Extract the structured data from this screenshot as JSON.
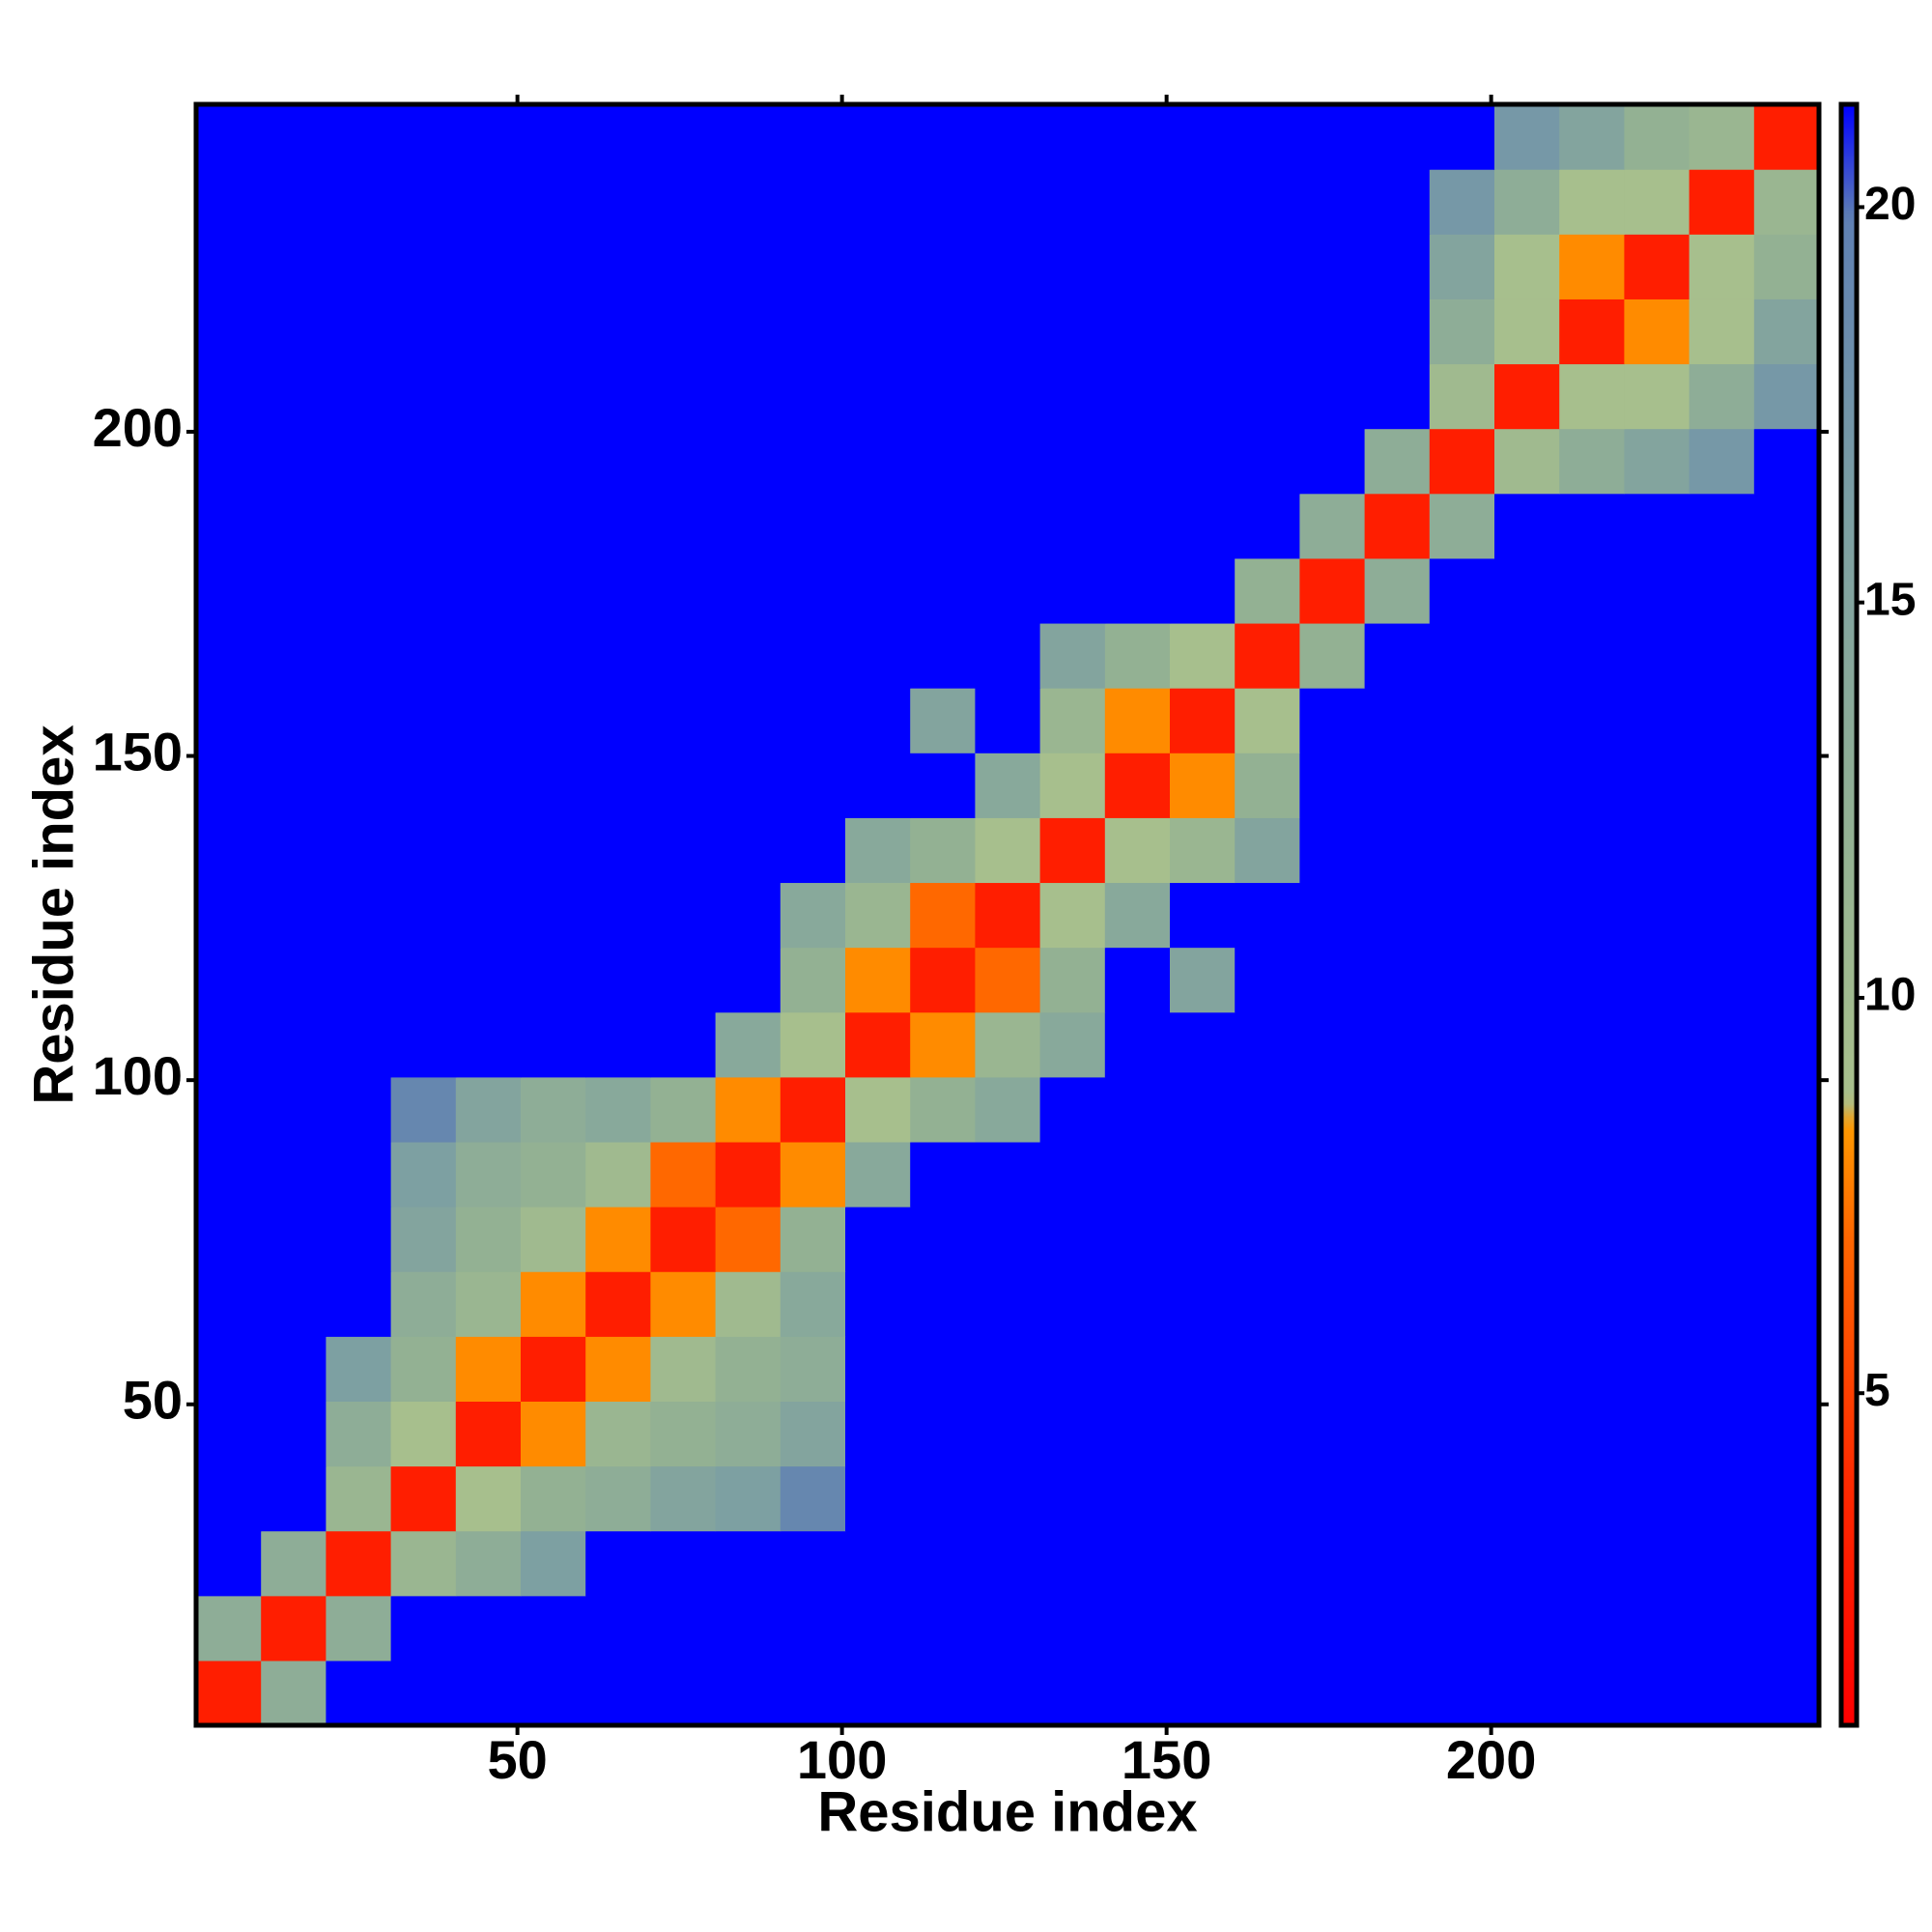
{
  "chart_data": {
    "type": "heatmap",
    "x_label": "Residue index",
    "y_label": "Residue index",
    "xlim": [
      0.5,
      250.5
    ],
    "ylim": [
      0.5,
      250.5
    ],
    "xticks": [
      50,
      100,
      150,
      200
    ],
    "yticks": [
      50,
      100,
      150,
      200
    ],
    "bins": [
      0.5,
      10.5,
      20.5,
      30.5,
      40.5,
      50.5,
      60.5,
      70.5,
      80.5,
      90.5,
      100.5,
      110.5,
      120.5,
      130.5,
      140.5,
      150.5,
      160.5,
      170.5,
      180.5,
      190.5,
      200.5,
      210.5,
      220.5,
      230.5,
      240.5,
      250.5
    ],
    "zlim": [
      0.8,
      21.3
    ],
    "colorbar_ticks": [
      5,
      10,
      15,
      20
    ],
    "colorscale": [
      "#ff0000",
      "#ff2a00",
      "#ff6600",
      "#ff9900",
      "#a9c08c",
      "#93b193",
      "#7c9fa3",
      "#5f80b3",
      "#0000ff"
    ],
    "z": [
      [
        3,
        13,
        21.3,
        21.3,
        21.3,
        21.3,
        21.3,
        21.3,
        21.3,
        21.3,
        21.3,
        21.3,
        21.3,
        21.3,
        21.3,
        21.3,
        21.3,
        21.3,
        21.3,
        21.3,
        21.3,
        21.3,
        21.3,
        21.3,
        21.3
      ],
      [
        13,
        3,
        13,
        21.3,
        21.3,
        21.3,
        21.3,
        21.3,
        21.3,
        21.3,
        21.3,
        21.3,
        21.3,
        21.3,
        21.3,
        21.3,
        21.3,
        21.3,
        21.3,
        21.3,
        21.3,
        21.3,
        21.3,
        21.3,
        21.3
      ],
      [
        21.3,
        13,
        3,
        11,
        13,
        16,
        21.3,
        21.3,
        21.3,
        21.3,
        21.3,
        21.3,
        21.3,
        21.3,
        21.3,
        21.3,
        21.3,
        21.3,
        21.3,
        21.3,
        21.3,
        21.3,
        21.3,
        21.3,
        21.3
      ],
      [
        21.3,
        21.3,
        11,
        3,
        9,
        12,
        13,
        15,
        16,
        19,
        21.3,
        21.3,
        21.3,
        21.3,
        21.3,
        21.3,
        21.3,
        21.3,
        21.3,
        21.3,
        21.3,
        21.3,
        21.3,
        21.3,
        21.3
      ],
      [
        21.3,
        21.3,
        13,
        9,
        3,
        8,
        11,
        12,
        13,
        15,
        21.3,
        21.3,
        21.3,
        21.3,
        21.3,
        21.3,
        21.3,
        21.3,
        21.3,
        21.3,
        21.3,
        21.3,
        21.3,
        21.3,
        21.3
      ],
      [
        21.3,
        21.3,
        16,
        12,
        8,
        3,
        8,
        10,
        12,
        13,
        21.3,
        21.3,
        21.3,
        21.3,
        21.3,
        21.3,
        21.3,
        21.3,
        21.3,
        21.3,
        21.3,
        21.3,
        21.3,
        21.3,
        21.3
      ],
      [
        21.3,
        21.3,
        21.3,
        13,
        11,
        8,
        3,
        8,
        10,
        14,
        21.3,
        21.3,
        21.3,
        21.3,
        21.3,
        21.3,
        21.3,
        21.3,
        21.3,
        21.3,
        21.3,
        21.3,
        21.3,
        21.3,
        21.3
      ],
      [
        21.3,
        21.3,
        21.3,
        15,
        12,
        10,
        8,
        3,
        7,
        12,
        21.3,
        21.3,
        21.3,
        21.3,
        21.3,
        21.3,
        21.3,
        21.3,
        21.3,
        21.3,
        21.3,
        21.3,
        21.3,
        21.3,
        21.3
      ],
      [
        21.3,
        21.3,
        21.3,
        16,
        13,
        12,
        10,
        7,
        3,
        8,
        14,
        21.3,
        21.3,
        21.3,
        21.3,
        21.3,
        21.3,
        21.3,
        21.3,
        21.3,
        21.3,
        21.3,
        21.3,
        21.3,
        21.3
      ],
      [
        21.3,
        21.3,
        21.3,
        19,
        15,
        13,
        14,
        12,
        8,
        3,
        9,
        12,
        14,
        21.3,
        21.3,
        21.3,
        21.3,
        21.3,
        21.3,
        21.3,
        21.3,
        21.3,
        21.3,
        21.3,
        21.3
      ],
      [
        21.3,
        21.3,
        21.3,
        21.3,
        21.3,
        21.3,
        21.3,
        21.3,
        14,
        9,
        3,
        8,
        11,
        14,
        21.3,
        21.3,
        21.3,
        21.3,
        21.3,
        21.3,
        21.3,
        21.3,
        21.3,
        21.3,
        21.3
      ],
      [
        21.3,
        21.3,
        21.3,
        21.3,
        21.3,
        21.3,
        21.3,
        21.3,
        21.3,
        12,
        8,
        3,
        7,
        12,
        21.3,
        15,
        21.3,
        21.3,
        21.3,
        21.3,
        21.3,
        21.3,
        21.3,
        21.3,
        21.3
      ],
      [
        21.3,
        21.3,
        21.3,
        21.3,
        21.3,
        21.3,
        21.3,
        21.3,
        21.3,
        14,
        11,
        7,
        3,
        9,
        14,
        21.3,
        21.3,
        21.3,
        21.3,
        21.3,
        21.3,
        21.3,
        21.3,
        21.3,
        21.3
      ],
      [
        21.3,
        21.3,
        21.3,
        21.3,
        21.3,
        21.3,
        21.3,
        21.3,
        21.3,
        21.3,
        14,
        12,
        9,
        3,
        9,
        11,
        15,
        21.3,
        21.3,
        21.3,
        21.3,
        21.3,
        21.3,
        21.3,
        21.3
      ],
      [
        21.3,
        21.3,
        21.3,
        21.3,
        21.3,
        21.3,
        21.3,
        21.3,
        21.3,
        21.3,
        21.3,
        21.3,
        14,
        9,
        3,
        8,
        12,
        21.3,
        21.3,
        21.3,
        21.3,
        21.3,
        21.3,
        21.3,
        21.3
      ],
      [
        21.3,
        21.3,
        21.3,
        21.3,
        21.3,
        21.3,
        21.3,
        21.3,
        21.3,
        21.3,
        21.3,
        15,
        21.3,
        11,
        8,
        3,
        9,
        21.3,
        21.3,
        21.3,
        21.3,
        21.3,
        21.3,
        21.3,
        21.3
      ],
      [
        21.3,
        21.3,
        21.3,
        21.3,
        21.3,
        21.3,
        21.3,
        21.3,
        21.3,
        21.3,
        21.3,
        21.3,
        21.3,
        15,
        12,
        9,
        3,
        12,
        21.3,
        21.3,
        21.3,
        21.3,
        21.3,
        21.3,
        21.3
      ],
      [
        21.3,
        21.3,
        21.3,
        21.3,
        21.3,
        21.3,
        21.3,
        21.3,
        21.3,
        21.3,
        21.3,
        21.3,
        21.3,
        21.3,
        21.3,
        21.3,
        12,
        3,
        13,
        21.3,
        21.3,
        21.3,
        21.3,
        21.3,
        21.3
      ],
      [
        21.3,
        21.3,
        21.3,
        21.3,
        21.3,
        21.3,
        21.3,
        21.3,
        21.3,
        21.3,
        21.3,
        21.3,
        21.3,
        21.3,
        21.3,
        21.3,
        21.3,
        13,
        3,
        13,
        21.3,
        21.3,
        21.3,
        21.3,
        21.3
      ],
      [
        21.3,
        21.3,
        21.3,
        21.3,
        21.3,
        21.3,
        21.3,
        21.3,
        21.3,
        21.3,
        21.3,
        21.3,
        21.3,
        21.3,
        21.3,
        21.3,
        21.3,
        21.3,
        13,
        3,
        10,
        13,
        15,
        17,
        21.3
      ],
      [
        21.3,
        21.3,
        21.3,
        21.3,
        21.3,
        21.3,
        21.3,
        21.3,
        21.3,
        21.3,
        21.3,
        21.3,
        21.3,
        21.3,
        21.3,
        21.3,
        21.3,
        21.3,
        21.3,
        10,
        3,
        9,
        9,
        13,
        17
      ],
      [
        21.3,
        21.3,
        21.3,
        21.3,
        21.3,
        21.3,
        21.3,
        21.3,
        21.3,
        21.3,
        21.3,
        21.3,
        21.3,
        21.3,
        21.3,
        21.3,
        21.3,
        21.3,
        21.3,
        13,
        9,
        3,
        8,
        9,
        15
      ],
      [
        21.3,
        21.3,
        21.3,
        21.3,
        21.3,
        21.3,
        21.3,
        21.3,
        21.3,
        21.3,
        21.3,
        21.3,
        21.3,
        21.3,
        21.3,
        21.3,
        21.3,
        21.3,
        21.3,
        15,
        9,
        8,
        3,
        9,
        12
      ],
      [
        21.3,
        21.3,
        21.3,
        21.3,
        21.3,
        21.3,
        21.3,
        21.3,
        21.3,
        21.3,
        21.3,
        21.3,
        21.3,
        21.3,
        21.3,
        21.3,
        21.3,
        21.3,
        21.3,
        17,
        13,
        9,
        9,
        3,
        11
      ],
      [
        21.3,
        21.3,
        21.3,
        21.3,
        21.3,
        21.3,
        21.3,
        21.3,
        21.3,
        21.3,
        21.3,
        21.3,
        21.3,
        21.3,
        21.3,
        21.3,
        21.3,
        21.3,
        21.3,
        21.3,
        17,
        15,
        12,
        11,
        3
      ]
    ]
  }
}
